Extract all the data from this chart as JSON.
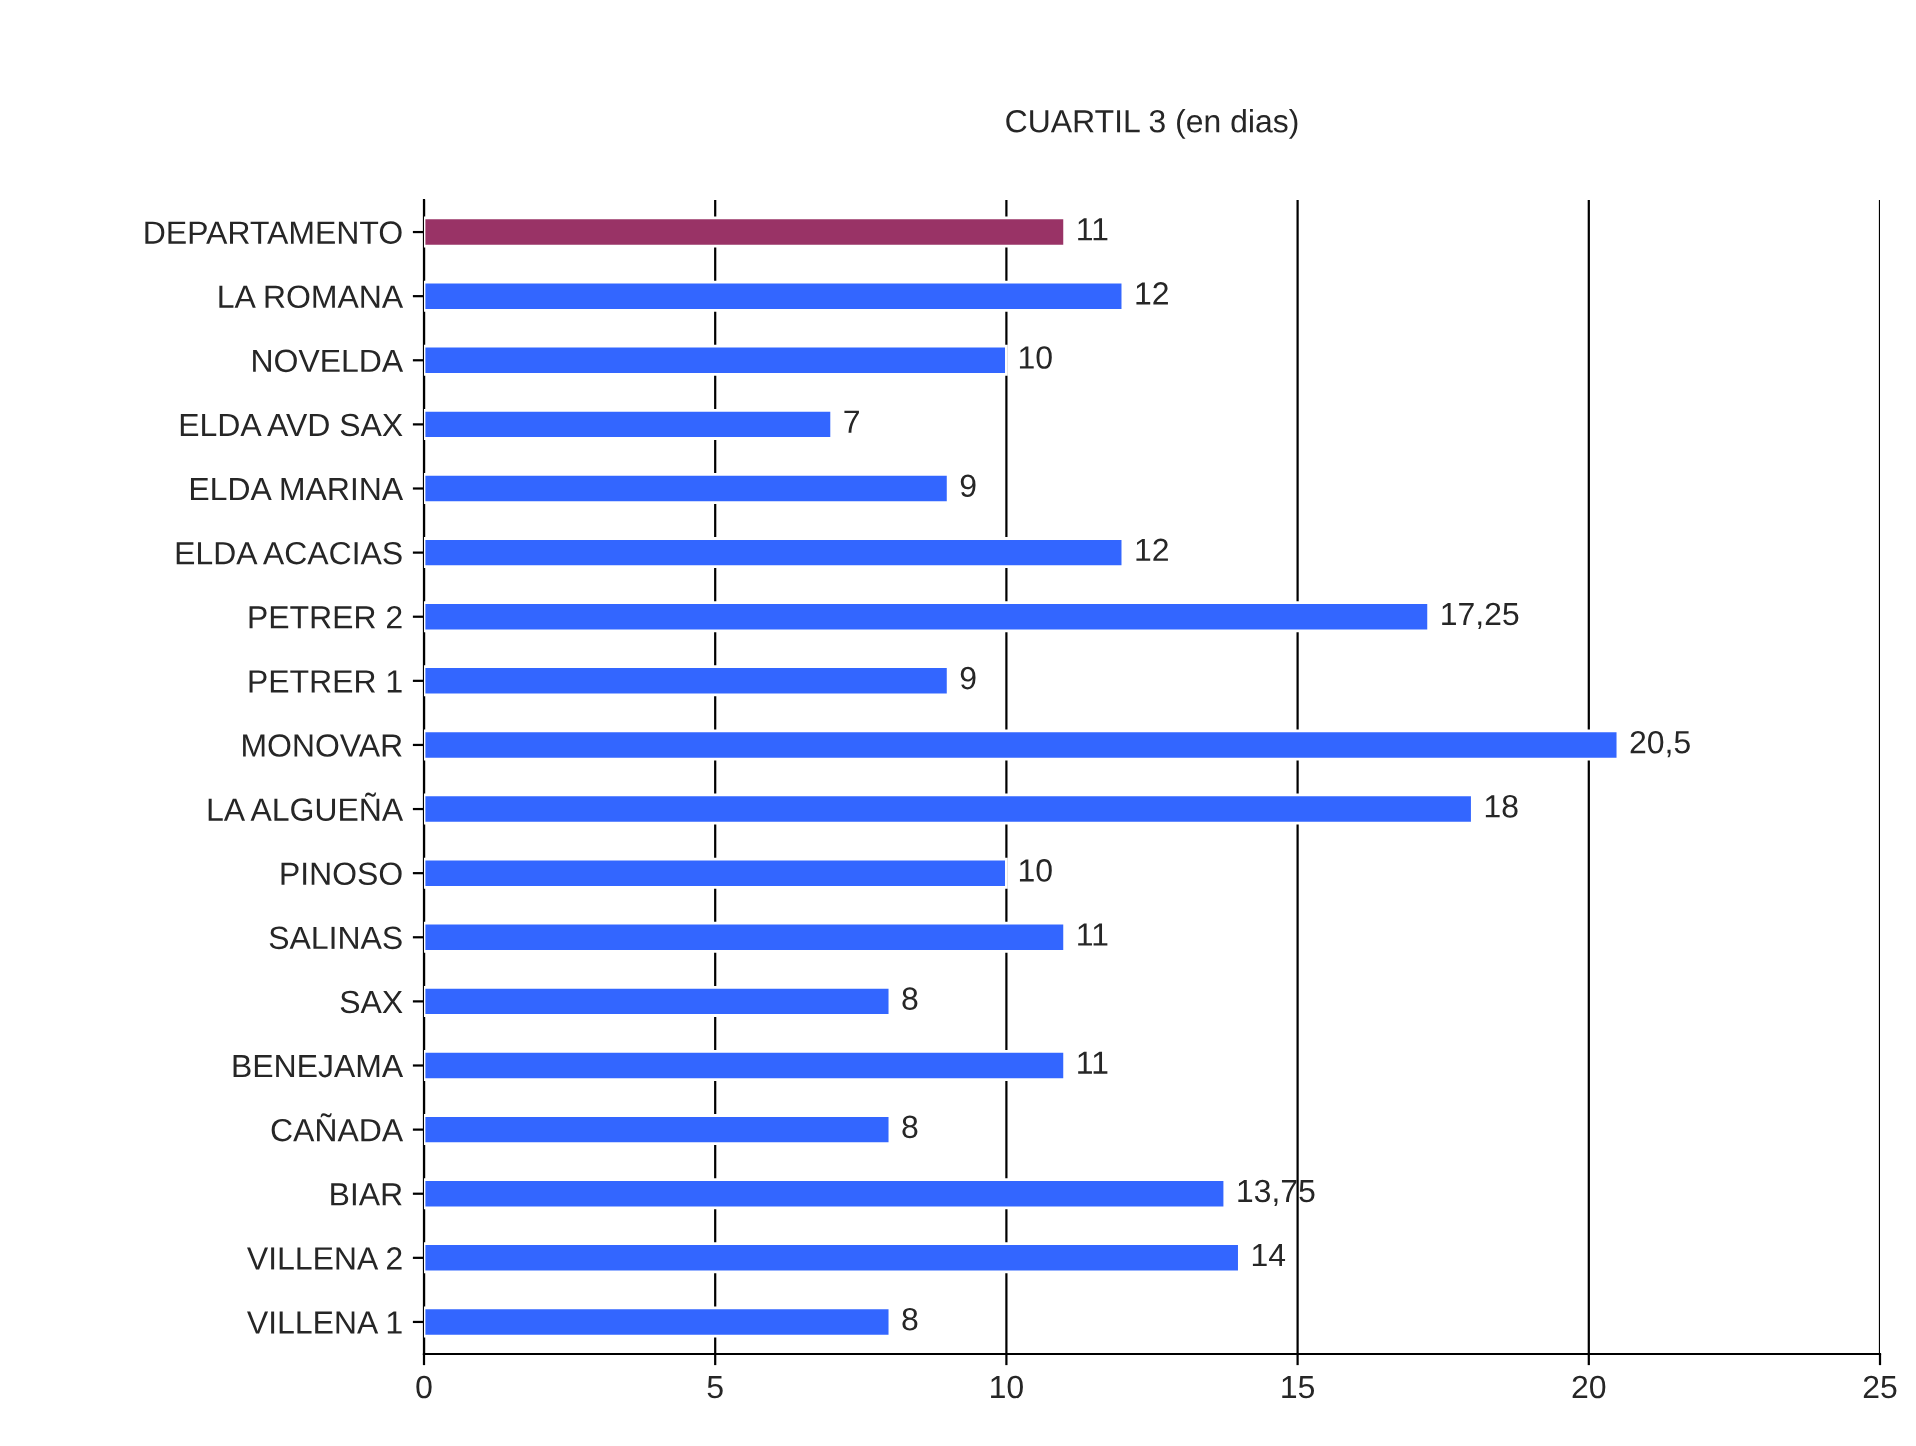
{
  "chart_data": {
    "type": "bar",
    "orientation": "horizontal",
    "title": "CUARTIL 3 (en dias)",
    "categories": [
      "DEPARTAMENTO",
      "LA ROMANA",
      "NOVELDA",
      "ELDA AVD SAX",
      "ELDA MARINA",
      "ELDA ACACIAS",
      "PETRER 2",
      "PETRER 1",
      "MONOVAR",
      "LA ALGUEÑA",
      "PINOSO",
      "SALINAS",
      "SAX",
      "BENEJAMA",
      "CAÑADA",
      "BIAR",
      "VILLENA 2",
      "VILLENA 1"
    ],
    "values": [
      11,
      12,
      10,
      7,
      9,
      12,
      17.25,
      9,
      20.5,
      18,
      10,
      11,
      8,
      11,
      8,
      13.75,
      14,
      8
    ],
    "value_labels": [
      "11",
      "12",
      "10",
      "7",
      "9",
      "12",
      "17,25",
      "9",
      "20,5",
      "18",
      "10",
      "11",
      "8",
      "11",
      "8",
      "13,75",
      "14",
      "8"
    ],
    "colors": [
      "#993366",
      "#3366ff",
      "#3366ff",
      "#3366ff",
      "#3366ff",
      "#3366ff",
      "#3366ff",
      "#3366ff",
      "#3366ff",
      "#3366ff",
      "#3366ff",
      "#3366ff",
      "#3366ff",
      "#3366ff",
      "#3366ff",
      "#3366ff",
      "#3366ff",
      "#3366ff"
    ],
    "xlim": [
      0,
      25
    ],
    "xticks": [
      0,
      5,
      10,
      15,
      20,
      25
    ],
    "grid": "x"
  }
}
